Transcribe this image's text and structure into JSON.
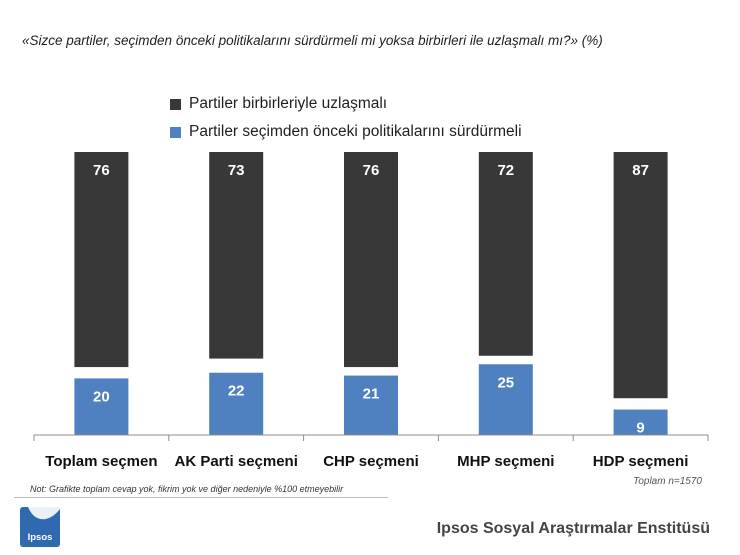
{
  "title": "«Sizce partiler, seçimden önceki  politikalarını sürdürmeli mi yoksa birbirleri ile uzlaşmalı mı?» (%)",
  "colors": {
    "uzlasma": "#383838",
    "surdurme": "#4f80c0",
    "axis": "#8c8c8c",
    "logo": "#2f69b0"
  },
  "chart_data": {
    "type": "bar",
    "stacked": true,
    "categories": [
      "Toplam seçmen",
      "AK Parti seçmeni",
      "CHP seçmeni",
      "MHP seçmeni",
      "HDP seçmeni"
    ],
    "series": [
      {
        "name": "Partiler seçimden önceki politikalarını sürdürmeli",
        "values": [
          20,
          22,
          21,
          25,
          9
        ]
      },
      {
        "name": "Partiler birbirleriyle uzlaşmalı",
        "values": [
          76,
          73,
          76,
          72,
          87
        ]
      }
    ],
    "ylim": [
      0,
      100
    ],
    "grid": false,
    "legend": "top"
  },
  "legend": {
    "items": [
      {
        "label": "Partiler birbirleriyle uzlaşmalı",
        "color": "#383838"
      },
      {
        "label": "Partiler seçimden önceki politikalarını sürdürmeli",
        "color": "#4f80c0"
      }
    ]
  },
  "note": "Not: Grafikte toplam cevap yok, fikrim yok ve diğer nedeniyle %100 etmeyebilir",
  "sample": "Toplam n=1570",
  "footer": {
    "logo_text": "Ipsos",
    "institute": "Ipsos Sosyal Araştırmalar Enstitüsü"
  }
}
